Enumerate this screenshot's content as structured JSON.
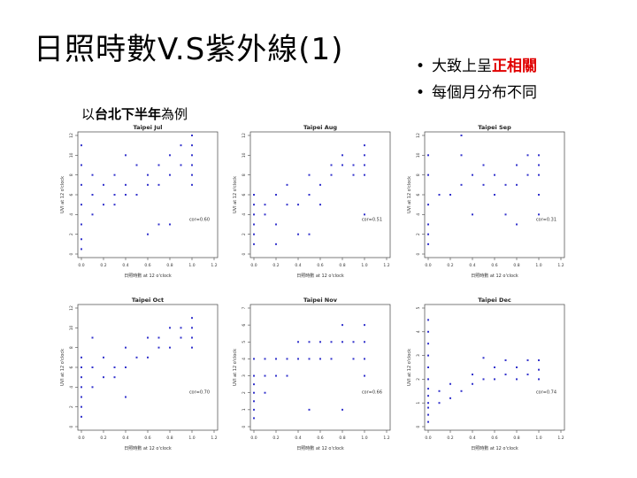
{
  "slide": {
    "title": "日照時數V.S紫外線(1)",
    "bullets": [
      {
        "prefix": "大致上呈",
        "highlight": "正相關"
      },
      {
        "prefix": "每個月分布不同",
        "highlight": ""
      }
    ],
    "subtitle": {
      "prefix": "以",
      "bold": "台北下半年",
      "suffix": "為例"
    }
  },
  "colors": {
    "highlight": "#e00000",
    "points": "#3333cc"
  },
  "chart_data": [
    {
      "type": "scatter",
      "title": "Taipei Jul",
      "xlabel": "日照時數 at 12 o'clock",
      "ylabel": "UVI at 12 o'clock",
      "xlim": [
        0,
        1.2
      ],
      "ylim": [
        0,
        12
      ],
      "annotation": "cor=0.60",
      "xticks": [
        "0.0",
        "0.2",
        "0.4",
        "0.6",
        "0.8",
        "1.0",
        "1.2"
      ],
      "yticks": [
        "0",
        "2",
        "4",
        "6",
        "8",
        "10",
        "12"
      ],
      "points": [
        [
          0.0,
          1.5
        ],
        [
          0.0,
          3
        ],
        [
          0.0,
          5
        ],
        [
          0.0,
          7
        ],
        [
          0.0,
          9
        ],
        [
          0.0,
          11
        ],
        [
          0.1,
          4
        ],
        [
          0.1,
          6
        ],
        [
          0.1,
          8
        ],
        [
          0.2,
          5
        ],
        [
          0.2,
          7
        ],
        [
          0.3,
          5
        ],
        [
          0.3,
          6
        ],
        [
          0.3,
          8
        ],
        [
          0.4,
          6
        ],
        [
          0.4,
          7
        ],
        [
          0.4,
          10
        ],
        [
          0.5,
          6
        ],
        [
          0.5,
          9
        ],
        [
          0.6,
          7
        ],
        [
          0.6,
          8
        ],
        [
          0.7,
          3
        ],
        [
          0.7,
          7
        ],
        [
          0.7,
          9
        ],
        [
          0.8,
          8
        ],
        [
          0.8,
          10
        ],
        [
          0.9,
          9
        ],
        [
          0.9,
          11
        ],
        [
          1.0,
          7
        ],
        [
          1.0,
          8
        ],
        [
          1.0,
          9
        ],
        [
          1.0,
          10
        ],
        [
          1.0,
          11
        ],
        [
          1.0,
          12
        ],
        [
          0.6,
          2
        ],
        [
          0.8,
          3
        ],
        [
          0.0,
          0.5
        ]
      ]
    },
    {
      "type": "scatter",
      "title": "Taipei Aug",
      "xlabel": "日照時數 at 12 o'clock",
      "ylabel": "UVI at 12 o'clock",
      "xlim": [
        0,
        1.2
      ],
      "ylim": [
        0,
        12
      ],
      "annotation": "cor=0.51",
      "xticks": [
        "0.0",
        "0.2",
        "0.4",
        "0.6",
        "0.8",
        "1.0",
        "1.2"
      ],
      "yticks": [
        "0",
        "2",
        "4",
        "6",
        "8",
        "10",
        "12"
      ],
      "points": [
        [
          0.0,
          1
        ],
        [
          0.0,
          2
        ],
        [
          0.0,
          3
        ],
        [
          0.0,
          4
        ],
        [
          0.0,
          5
        ],
        [
          0.0,
          6
        ],
        [
          0.1,
          4
        ],
        [
          0.1,
          5
        ],
        [
          0.2,
          3
        ],
        [
          0.2,
          6
        ],
        [
          0.3,
          5
        ],
        [
          0.3,
          7
        ],
        [
          0.4,
          2
        ],
        [
          0.4,
          5
        ],
        [
          0.5,
          6
        ],
        [
          0.5,
          8
        ],
        [
          0.6,
          5
        ],
        [
          0.6,
          7
        ],
        [
          0.7,
          8
        ],
        [
          0.7,
          9
        ],
        [
          0.8,
          9
        ],
        [
          0.8,
          10
        ],
        [
          0.9,
          8
        ],
        [
          0.9,
          9
        ],
        [
          1.0,
          8
        ],
        [
          1.0,
          9
        ],
        [
          1.0,
          10
        ],
        [
          1.0,
          11
        ],
        [
          1.0,
          4
        ],
        [
          0.5,
          2
        ],
        [
          0.2,
          1
        ]
      ]
    },
    {
      "type": "scatter",
      "title": "Taipei Sep",
      "xlabel": "日照時數 at 12 o'clock",
      "ylabel": "UVI at 12 o'clock",
      "xlim": [
        0,
        1.2
      ],
      "ylim": [
        0,
        12
      ],
      "annotation": "cor=0.31",
      "xticks": [
        "0.0",
        "0.2",
        "0.4",
        "0.6",
        "0.8",
        "1.0",
        "1.2"
      ],
      "yticks": [
        "0",
        "2",
        "4",
        "6",
        "8",
        "10",
        "12"
      ],
      "points": [
        [
          0.0,
          1
        ],
        [
          0.0,
          2
        ],
        [
          0.0,
          3
        ],
        [
          0.0,
          5
        ],
        [
          0.0,
          8
        ],
        [
          0.0,
          10
        ],
        [
          0.1,
          6
        ],
        [
          0.2,
          6
        ],
        [
          0.3,
          7
        ],
        [
          0.3,
          10
        ],
        [
          0.4,
          8
        ],
        [
          0.4,
          4
        ],
        [
          0.5,
          7
        ],
        [
          0.5,
          9
        ],
        [
          0.6,
          6
        ],
        [
          0.6,
          8
        ],
        [
          0.7,
          7
        ],
        [
          0.7,
          4
        ],
        [
          0.8,
          7
        ],
        [
          0.8,
          9
        ],
        [
          0.9,
          8
        ],
        [
          0.9,
          10
        ],
        [
          1.0,
          6
        ],
        [
          1.0,
          8
        ],
        [
          1.0,
          9
        ],
        [
          1.0,
          10
        ],
        [
          1.0,
          4
        ],
        [
          0.3,
          12
        ],
        [
          0.8,
          3
        ]
      ]
    },
    {
      "type": "scatter",
      "title": "Taipei Oct",
      "xlabel": "日照時數 at 12 o'clock",
      "ylabel": "UVI at 12 o'clock",
      "xlim": [
        0,
        1.2
      ],
      "ylim": [
        0,
        12
      ],
      "annotation": "cor=0.70",
      "xticks": [
        "0.0",
        "0.2",
        "0.4",
        "0.6",
        "0.8",
        "1.0",
        "1.2"
      ],
      "yticks": [
        "0",
        "2",
        "4",
        "6",
        "8",
        "10",
        "12"
      ],
      "points": [
        [
          0.0,
          1
        ],
        [
          0.0,
          2
        ],
        [
          0.0,
          3
        ],
        [
          0.0,
          4
        ],
        [
          0.0,
          5
        ],
        [
          0.0,
          6
        ],
        [
          0.0,
          7
        ],
        [
          0.1,
          4
        ],
        [
          0.1,
          6
        ],
        [
          0.2,
          5
        ],
        [
          0.2,
          7
        ],
        [
          0.3,
          5
        ],
        [
          0.3,
          6
        ],
        [
          0.4,
          6
        ],
        [
          0.4,
          8
        ],
        [
          0.5,
          7
        ],
        [
          0.6,
          7
        ],
        [
          0.6,
          9
        ],
        [
          0.7,
          8
        ],
        [
          0.7,
          9
        ],
        [
          0.8,
          8
        ],
        [
          0.8,
          10
        ],
        [
          0.9,
          9
        ],
        [
          0.9,
          10
        ],
        [
          1.0,
          8
        ],
        [
          1.0,
          9
        ],
        [
          1.0,
          10
        ],
        [
          1.0,
          11
        ],
        [
          0.1,
          9
        ],
        [
          0.4,
          3
        ]
      ]
    },
    {
      "type": "scatter",
      "title": "Taipei Nov",
      "xlabel": "日照時數 at 12 o'clock",
      "ylabel": "UVI at 12 o'clock",
      "xlim": [
        0,
        1.2
      ],
      "ylim": [
        0,
        7
      ],
      "annotation": "cor=0.66",
      "xticks": [
        "0.0",
        "0.2",
        "0.4",
        "0.6",
        "0.8",
        "1.0",
        "1.2"
      ],
      "yticks": [
        "0",
        "1",
        "2",
        "3",
        "4",
        "5",
        "6",
        "7"
      ],
      "points": [
        [
          0.0,
          0.5
        ],
        [
          0.0,
          1
        ],
        [
          0.0,
          1.5
        ],
        [
          0.0,
          2
        ],
        [
          0.0,
          2.5
        ],
        [
          0.0,
          3
        ],
        [
          0.0,
          4
        ],
        [
          0.1,
          2
        ],
        [
          0.1,
          3
        ],
        [
          0.1,
          4
        ],
        [
          0.2,
          3
        ],
        [
          0.2,
          4
        ],
        [
          0.3,
          3
        ],
        [
          0.3,
          4
        ],
        [
          0.4,
          4
        ],
        [
          0.4,
          5
        ],
        [
          0.5,
          4
        ],
        [
          0.5,
          5
        ],
        [
          0.6,
          5
        ],
        [
          0.6,
          4
        ],
        [
          0.7,
          4
        ],
        [
          0.7,
          5
        ],
        [
          0.8,
          5
        ],
        [
          0.8,
          6
        ],
        [
          0.9,
          4
        ],
        [
          0.9,
          5
        ],
        [
          1.0,
          3
        ],
        [
          1.0,
          4
        ],
        [
          1.0,
          5
        ],
        [
          1.0,
          6
        ],
        [
          0.5,
          1
        ],
        [
          0.8,
          1
        ]
      ]
    },
    {
      "type": "scatter",
      "title": "Taipei Dec",
      "xlabel": "日照時數 at 12 o'clock",
      "ylabel": "UVI at 12 o'clock",
      "xlim": [
        0,
        1.2
      ],
      "ylim": [
        0,
        5
      ],
      "annotation": "cor=0.74",
      "xticks": [
        "0.0",
        "0.2",
        "0.4",
        "0.6",
        "0.8",
        "1.0",
        "1.2"
      ],
      "yticks": [
        "0",
        "1",
        "2",
        "3",
        "4",
        "5"
      ],
      "points": [
        [
          0.0,
          0.2
        ],
        [
          0.0,
          0.5
        ],
        [
          0.0,
          0.8
        ],
        [
          0.0,
          1
        ],
        [
          0.0,
          1.3
        ],
        [
          0.0,
          1.6
        ],
        [
          0.0,
          2
        ],
        [
          0.0,
          2.5
        ],
        [
          0.0,
          3
        ],
        [
          0.0,
          3.5
        ],
        [
          0.0,
          4
        ],
        [
          0.0,
          4.5
        ],
        [
          0.1,
          1
        ],
        [
          0.1,
          1.5
        ],
        [
          0.2,
          1.2
        ],
        [
          0.2,
          1.8
        ],
        [
          0.3,
          1.5
        ],
        [
          0.4,
          1.8
        ],
        [
          0.4,
          2.2
        ],
        [
          0.5,
          2
        ],
        [
          0.6,
          2
        ],
        [
          0.6,
          2.5
        ],
        [
          0.7,
          2.2
        ],
        [
          0.7,
          2.8
        ],
        [
          0.8,
          2
        ],
        [
          0.8,
          2.5
        ],
        [
          0.9,
          2.2
        ],
        [
          0.9,
          2.8
        ],
        [
          1.0,
          2
        ],
        [
          1.0,
          2.4
        ],
        [
          1.0,
          2.8
        ],
        [
          0.5,
          2.9
        ]
      ]
    }
  ]
}
